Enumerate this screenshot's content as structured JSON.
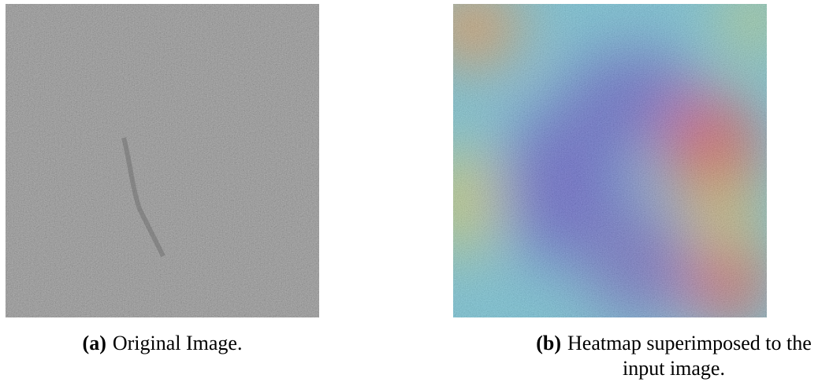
{
  "subfigures": [
    {
      "label": "(a)",
      "caption": "Original Image."
    },
    {
      "label": "(b)",
      "caption": "Heatmap superimposed to the input image."
    }
  ]
}
